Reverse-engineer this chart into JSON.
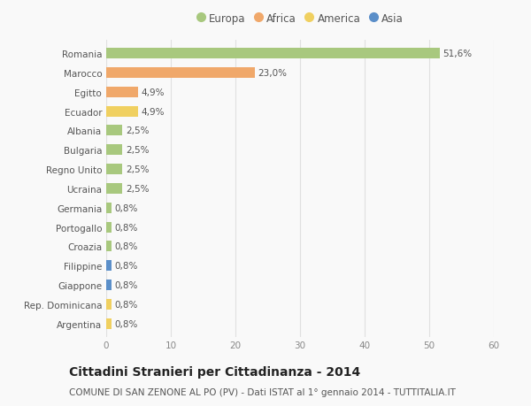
{
  "countries": [
    "Romania",
    "Marocco",
    "Egitto",
    "Ecuador",
    "Albania",
    "Bulgaria",
    "Regno Unito",
    "Ucraina",
    "Germania",
    "Portogallo",
    "Croazia",
    "Filippine",
    "Giappone",
    "Rep. Dominicana",
    "Argentina"
  ],
  "values": [
    51.6,
    23.0,
    4.9,
    4.9,
    2.5,
    2.5,
    2.5,
    2.5,
    0.8,
    0.8,
    0.8,
    0.8,
    0.8,
    0.8,
    0.8
  ],
  "labels": [
    "51,6%",
    "23,0%",
    "4,9%",
    "4,9%",
    "2,5%",
    "2,5%",
    "2,5%",
    "2,5%",
    "0,8%",
    "0,8%",
    "0,8%",
    "0,8%",
    "0,8%",
    "0,8%",
    "0,8%"
  ],
  "continents": [
    "Europa",
    "Africa",
    "Africa",
    "America",
    "Europa",
    "Europa",
    "Europa",
    "Europa",
    "Europa",
    "Europa",
    "Europa",
    "Asia",
    "Asia",
    "America",
    "America"
  ],
  "continent_colors": {
    "Europa": "#a8c87e",
    "Africa": "#f0a86a",
    "America": "#f0d060",
    "Asia": "#5b8fc9"
  },
  "legend_order": [
    "Europa",
    "Africa",
    "America",
    "Asia"
  ],
  "xlim": [
    0,
    60
  ],
  "xticks": [
    0,
    10,
    20,
    30,
    40,
    50,
    60
  ],
  "title": "Cittadini Stranieri per Cittadinanza - 2014",
  "subtitle": "COMUNE DI SAN ZENONE AL PO (PV) - Dati ISTAT al 1° gennaio 2014 - TUTTITALIA.IT",
  "bg_color": "#f9f9f9",
  "grid_color": "#e0e0e0",
  "bar_height": 0.55,
  "title_fontsize": 10,
  "subtitle_fontsize": 7.5,
  "label_fontsize": 7.5,
  "ytick_fontsize": 7.5,
  "xtick_fontsize": 7.5,
  "legend_fontsize": 8.5
}
